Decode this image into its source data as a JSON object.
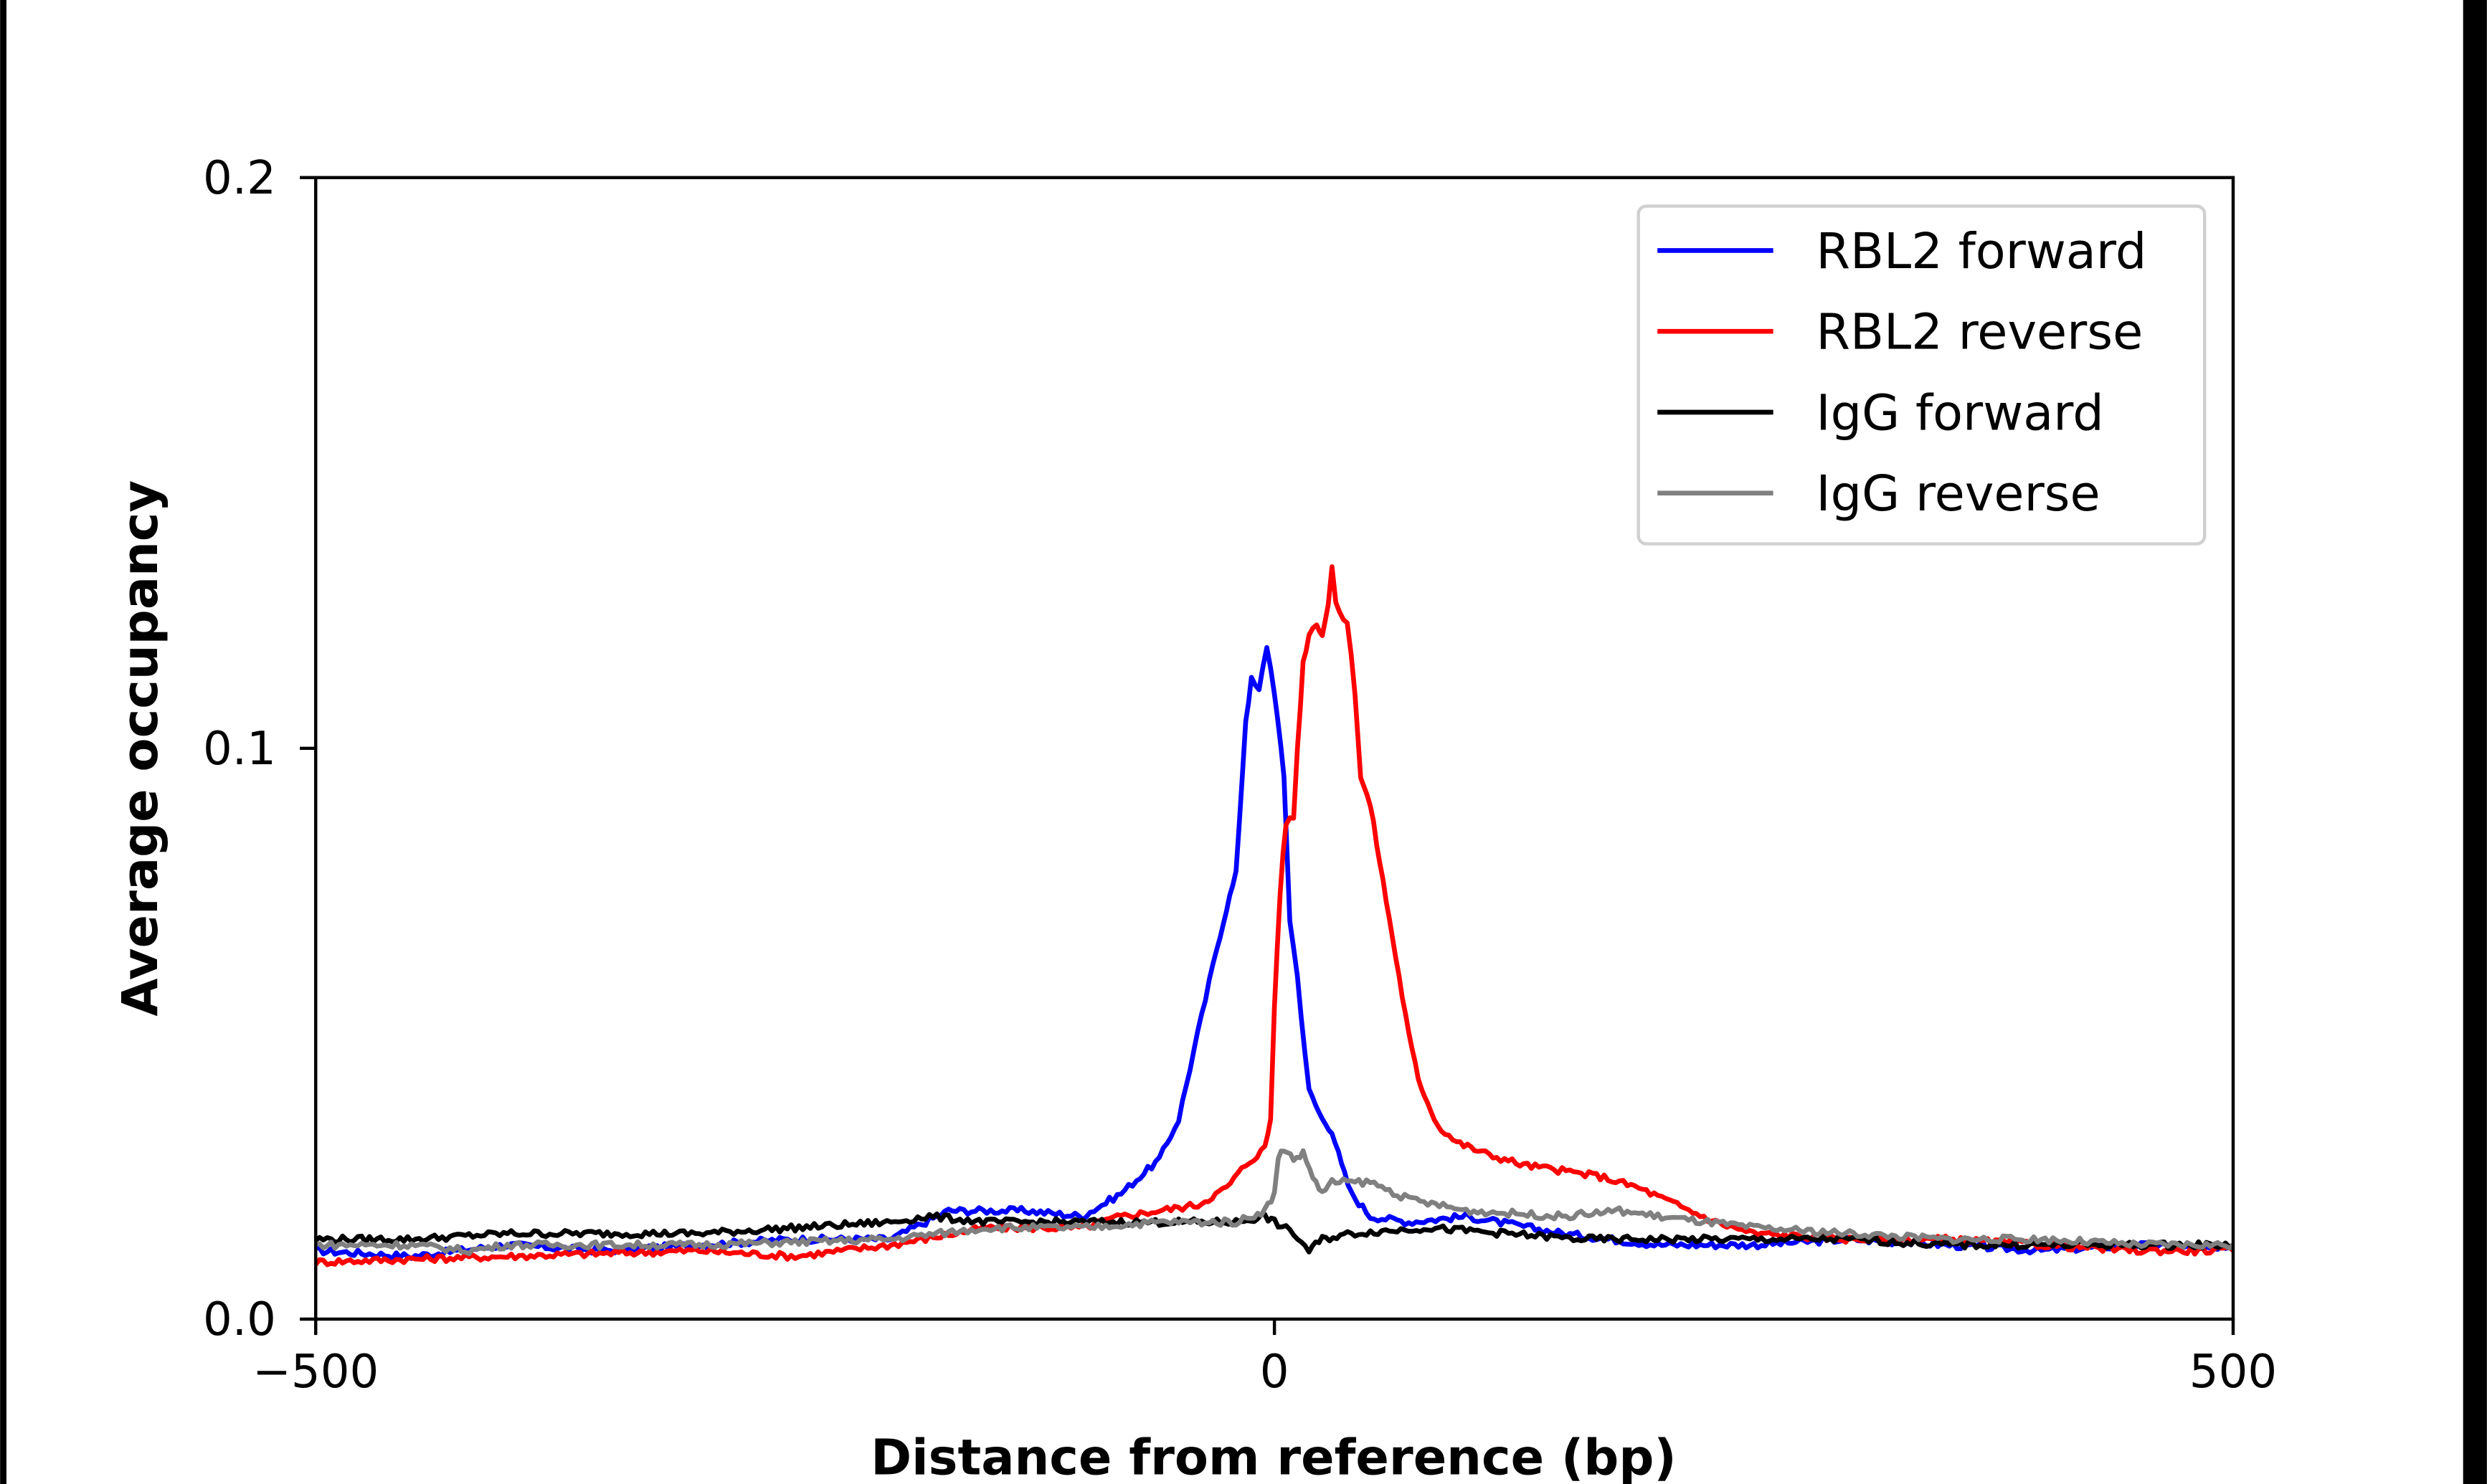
{
  "chart_data": {
    "type": "line",
    "title": "",
    "xlabel": "Distance from reference (bp)",
    "ylabel": "Average occupancy",
    "xlim": [
      -500,
      500
    ],
    "ylim": [
      0.0,
      0.2
    ],
    "xticks": [
      -500,
      0,
      500
    ],
    "xtick_labels": [
      "−500",
      "0",
      "500"
    ],
    "yticks": [
      0.0,
      0.1,
      0.2
    ],
    "ytick_labels": [
      "0.0",
      "0.1",
      "0.2"
    ],
    "grid": false,
    "legend_position": "top-right",
    "series": [
      {
        "name": "RBL2 forward",
        "color": "#0000ff",
        "x": [
          -500,
          -450,
          -400,
          -350,
          -300,
          -250,
          -200,
          -170,
          -130,
          -100,
          -80,
          -60,
          -50,
          -40,
          -30,
          -25,
          -20,
          -15,
          -12,
          -8,
          -4,
          0,
          5,
          8,
          12,
          18,
          25,
          30,
          35,
          40,
          50,
          70,
          100,
          150,
          200,
          250,
          300,
          350,
          400,
          450,
          500
        ],
        "y": [
          0.012,
          0.011,
          0.013,
          0.012,
          0.013,
          0.014,
          0.014,
          0.019,
          0.019,
          0.018,
          0.022,
          0.028,
          0.035,
          0.05,
          0.065,
          0.072,
          0.078,
          0.105,
          0.112,
          0.11,
          0.118,
          0.11,
          0.095,
          0.07,
          0.06,
          0.04,
          0.035,
          0.033,
          0.027,
          0.022,
          0.018,
          0.017,
          0.018,
          0.015,
          0.013,
          0.013,
          0.014,
          0.013,
          0.012,
          0.013,
          0.012
        ]
      },
      {
        "name": "RBL2 reverse",
        "color": "#ff0000",
        "x": [
          -500,
          -400,
          -300,
          -250,
          -200,
          -150,
          -100,
          -80,
          -60,
          -40,
          -25,
          -15,
          -5,
          -2,
          0,
          3,
          6,
          10,
          12,
          15,
          18,
          22,
          25,
          28,
          30,
          32,
          38,
          42,
          45,
          50,
          55,
          60,
          65,
          70,
          75,
          80,
          85,
          95,
          110,
          130,
          150,
          170,
          190,
          210,
          230,
          250,
          300,
          350,
          400,
          450,
          500
        ],
        "y": [
          0.01,
          0.011,
          0.012,
          0.011,
          0.013,
          0.016,
          0.016,
          0.018,
          0.019,
          0.02,
          0.023,
          0.027,
          0.03,
          0.035,
          0.055,
          0.075,
          0.087,
          0.088,
          0.1,
          0.115,
          0.12,
          0.122,
          0.12,
          0.125,
          0.132,
          0.125,
          0.122,
          0.11,
          0.095,
          0.09,
          0.08,
          0.07,
          0.06,
          0.05,
          0.042,
          0.038,
          0.034,
          0.031,
          0.029,
          0.027,
          0.026,
          0.025,
          0.023,
          0.02,
          0.017,
          0.015,
          0.014,
          0.014,
          0.013,
          0.012,
          0.012
        ]
      },
      {
        "name": "IgG forward",
        "color": "#000000",
        "x": [
          -500,
          -450,
          -400,
          -350,
          -300,
          -250,
          -200,
          -180,
          -150,
          -100,
          -50,
          -20,
          -5,
          0,
          10,
          18,
          25,
          40,
          80,
          120,
          160,
          200,
          250,
          300,
          350,
          400,
          450,
          500
        ],
        "y": [
          0.014,
          0.014,
          0.015,
          0.015,
          0.015,
          0.016,
          0.017,
          0.018,
          0.017,
          0.017,
          0.017,
          0.017,
          0.018,
          0.017,
          0.015,
          0.012,
          0.014,
          0.015,
          0.016,
          0.015,
          0.014,
          0.014,
          0.014,
          0.014,
          0.013,
          0.013,
          0.013,
          0.013
        ]
      },
      {
        "name": "IgG reverse",
        "color": "#808080",
        "x": [
          -500,
          -450,
          -420,
          -400,
          -300,
          -200,
          -150,
          -100,
          -60,
          -20,
          -5,
          0,
          2,
          5,
          10,
          15,
          20,
          25,
          30,
          50,
          70,
          100,
          150,
          180,
          200,
          250,
          300,
          350,
          400,
          450,
          500
        ],
        "y": [
          0.013,
          0.013,
          0.012,
          0.013,
          0.013,
          0.014,
          0.016,
          0.016,
          0.017,
          0.017,
          0.019,
          0.022,
          0.028,
          0.03,
          0.028,
          0.029,
          0.025,
          0.022,
          0.024,
          0.024,
          0.021,
          0.019,
          0.018,
          0.019,
          0.018,
          0.016,
          0.015,
          0.014,
          0.014,
          0.013,
          0.013
        ]
      }
    ]
  }
}
